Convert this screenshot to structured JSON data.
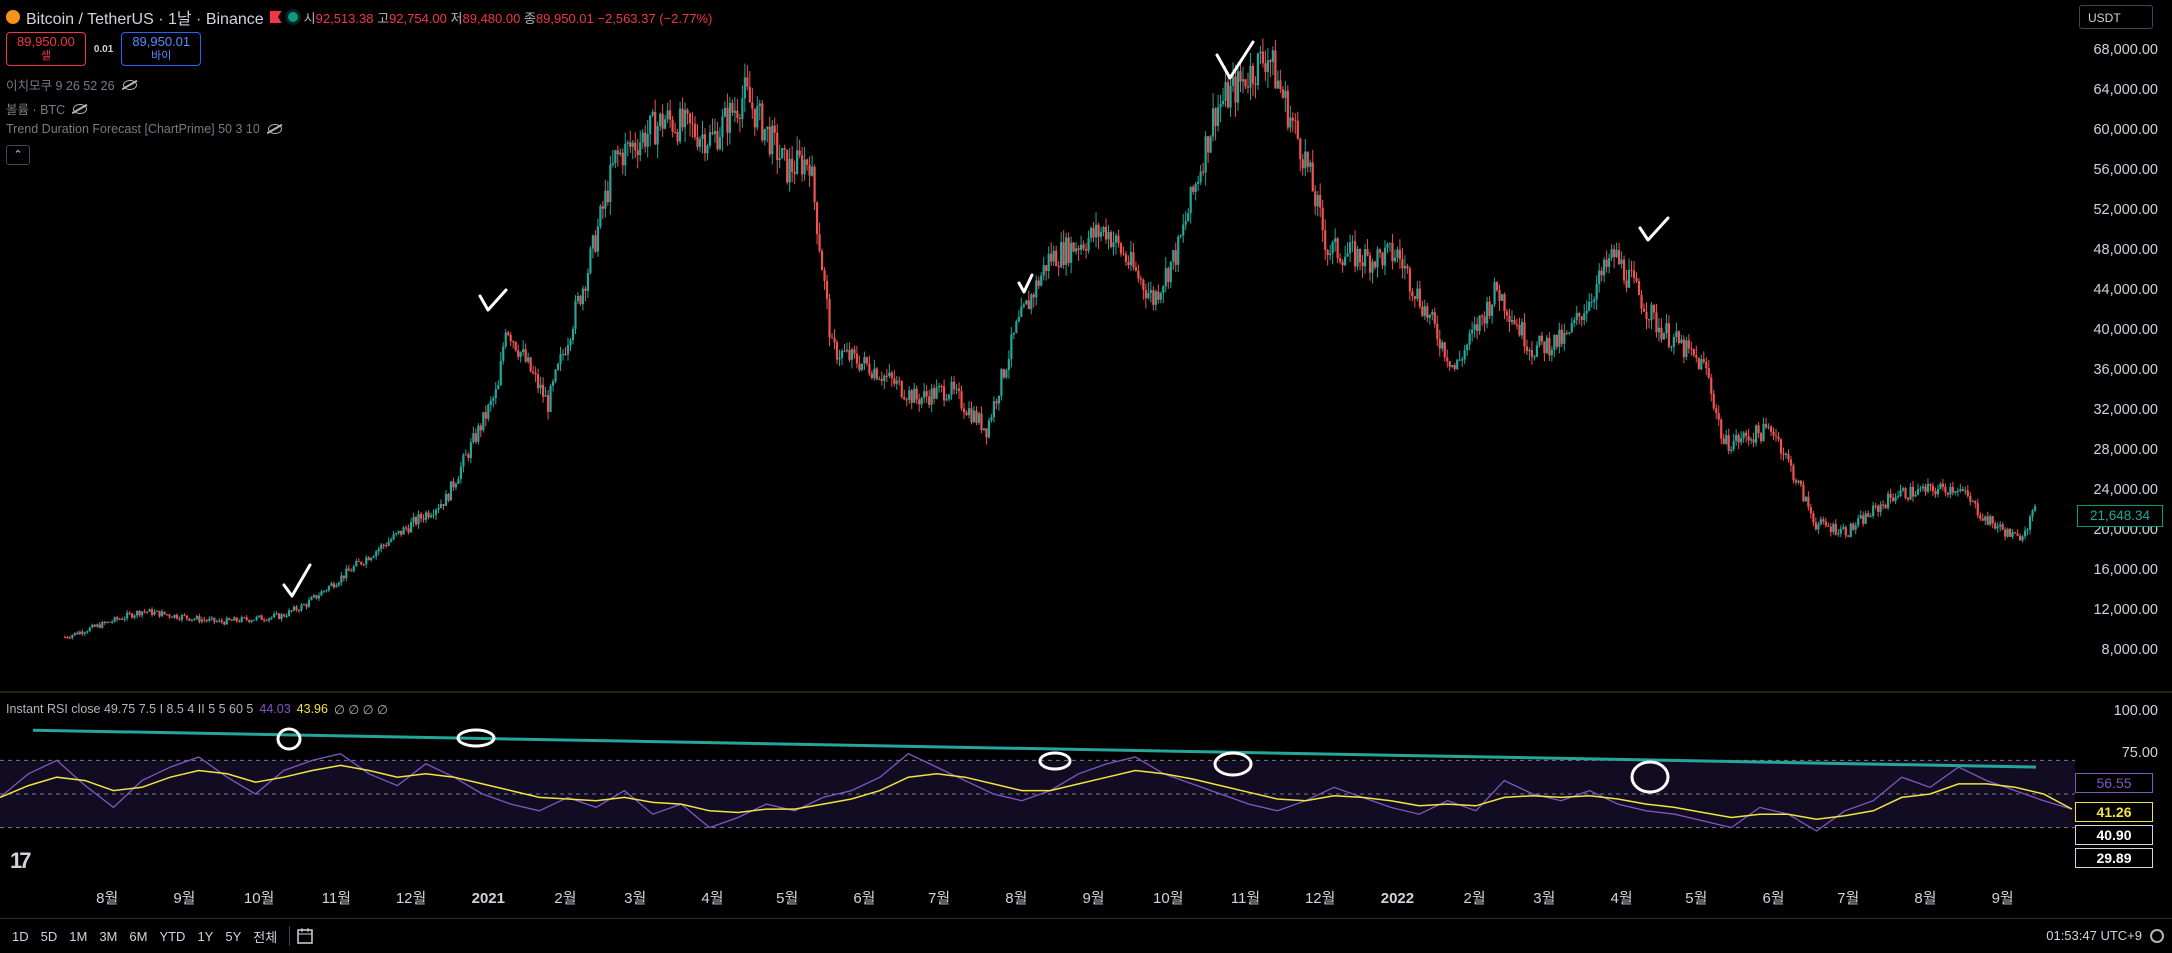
{
  "header": {
    "symbol": "Bitcoin / TetherUS · 1날 · Binance",
    "open_label": "시",
    "open": "92,513.38",
    "high_label": "고",
    "high": "92,754.00",
    "low_label": "저",
    "low": "89,480.00",
    "close_label": "종",
    "close": "89,950.01",
    "change": "−2,563.37 (−2.77%)"
  },
  "trade": {
    "sell_price": "89,950.00",
    "sell_label": "셀",
    "spread": "0.01",
    "buy_price": "89,950.01",
    "buy_label": "바이"
  },
  "indicators": [
    {
      "label": "이치모쿠 9 26 52 26"
    },
    {
      "label": "볼륨 · BTC"
    },
    {
      "label": "Trend Duration Forecast [ChartPrime] 50 3 10"
    }
  ],
  "currency": "USDT",
  "collapse_glyph": "⌃",
  "rsi": {
    "title": "Instant RSI close 49.75 7.5 I 8.5 4 II 5 5 60 5",
    "v1": "44.03",
    "v2": "43.96",
    "tail": "∅ ∅ ∅ ∅",
    "colors": {
      "rsi": "#7e57c2",
      "signal": "#f0e442",
      "trend": "#26a69a"
    }
  },
  "chart_data": [
    {
      "type": "candlestick",
      "title": "Bitcoin / TetherUS · 1날 · Binance",
      "y_ticks": [
        "68,000.00",
        "64,000.00",
        "60,000.00",
        "56,000.00",
        "52,000.00",
        "48,000.00",
        "44,000.00",
        "40,000.00",
        "36,000.00",
        "32,000.00",
        "28,000.00",
        "24,000.00",
        "20,000.00",
        "16,000.00",
        "12,000.00",
        "8,000.00"
      ],
      "ylim": [
        4000,
        70000
      ],
      "last_price_label": "21,648.34",
      "x_ticks": [
        "8월",
        "9월",
        "10월",
        "11월",
        "12월",
        "2021",
        "2월",
        "3월",
        "4월",
        "5월",
        "6월",
        "7월",
        "8월",
        "9월",
        "10월",
        "11월",
        "12월",
        "2022",
        "2월",
        "3월",
        "4월",
        "5월",
        "6월",
        "7월",
        "8월",
        "9월"
      ],
      "series": [
        {
          "x": [
            "2020-07-15",
            "2020-08-15",
            "2020-09-15",
            "2020-10-10",
            "2020-10-20",
            "2020-11-15",
            "2020-12-15",
            "2021-01-05",
            "2021-01-08",
            "2021-01-25",
            "2021-02-10",
            "2021-02-21",
            "2021-03-13",
            "2021-04-01",
            "2021-04-14",
            "2021-05-01",
            "2021-05-10",
            "2021-05-19",
            "2021-06-05",
            "2021-06-22",
            "2021-07-05",
            "2021-07-20",
            "2021-08-01",
            "2021-08-14",
            "2021-09-06",
            "2021-09-25",
            "2021-10-05",
            "2021-10-20",
            "2021-11-10",
            "2021-11-25",
            "2021-12-04",
            "2021-12-20",
            "2022-01-01",
            "2022-01-24",
            "2022-02-10",
            "2022-02-24",
            "2022-03-10",
            "2022-03-29",
            "2022-04-15",
            "2022-05-05",
            "2022-05-12",
            "2022-06-01",
            "2022-06-18",
            "2022-07-01",
            "2022-07-20",
            "2022-08-14",
            "2022-08-25",
            "2022-09-07",
            "2022-09-14"
          ],
          "values": [
            9200,
            11800,
            10700,
            11300,
            12500,
            17500,
            23000,
            34000,
            40500,
            32500,
            46000,
            57000,
            61000,
            59000,
            63500,
            56000,
            57000,
            38000,
            36000,
            33000,
            34000,
            30000,
            40000,
            47000,
            50000,
            43000,
            48000,
            62000,
            67500,
            57000,
            48000,
            47000,
            47500,
            36000,
            44000,
            38000,
            39000,
            47500,
            40500,
            36000,
            28500,
            30000,
            20500,
            19800,
            23500,
            24200,
            21000,
            19000,
            21650
          ]
        }
      ]
    },
    {
      "type": "line",
      "title": "Instant RSI close 49.75 7.5 I 8.5 4 II 5 5 60 5",
      "y_ticks": [
        "100.00",
        "75.00"
      ],
      "ylim": [
        20,
        100
      ],
      "levels": [
        70,
        50,
        30
      ],
      "value_labels": [
        "56.55",
        "41.26",
        "40.90",
        "29.89"
      ],
      "series": [
        {
          "name": "RSI",
          "values": [
            48,
            62,
            70,
            55,
            42,
            58,
            66,
            72,
            60,
            50,
            64,
            70,
            74,
            62,
            55,
            68,
            60,
            50,
            44,
            40,
            48,
            42,
            52,
            38,
            44,
            30,
            36,
            44,
            40,
            48,
            52,
            60,
            74,
            66,
            58,
            50,
            46,
            52,
            62,
            68,
            72,
            62,
            56,
            50,
            44,
            40,
            46,
            54,
            48,
            42,
            38,
            46,
            40,
            58,
            50,
            46,
            52,
            44,
            40,
            38,
            34,
            30,
            42,
            38,
            28,
            40,
            46,
            60,
            54,
            66,
            58,
            52,
            46,
            41
          ]
        },
        {
          "name": "Signal",
          "values": [
            48,
            55,
            60,
            58,
            52,
            54,
            60,
            64,
            62,
            57,
            60,
            64,
            67,
            64,
            60,
            62,
            60,
            56,
            52,
            48,
            47,
            46,
            48,
            45,
            44,
            40,
            39,
            41,
            41,
            44,
            47,
            52,
            60,
            62,
            60,
            56,
            52,
            52,
            56,
            60,
            64,
            62,
            59,
            55,
            51,
            47,
            46,
            49,
            48,
            46,
            43,
            44,
            43,
            48,
            49,
            48,
            49,
            47,
            44,
            42,
            39,
            36,
            38,
            38,
            35,
            37,
            40,
            48,
            50,
            56,
            56,
            54,
            50,
            41
          ]
        },
        {
          "name": "Trend",
          "values": [
            88,
            66
          ]
        }
      ]
    }
  ]
}
